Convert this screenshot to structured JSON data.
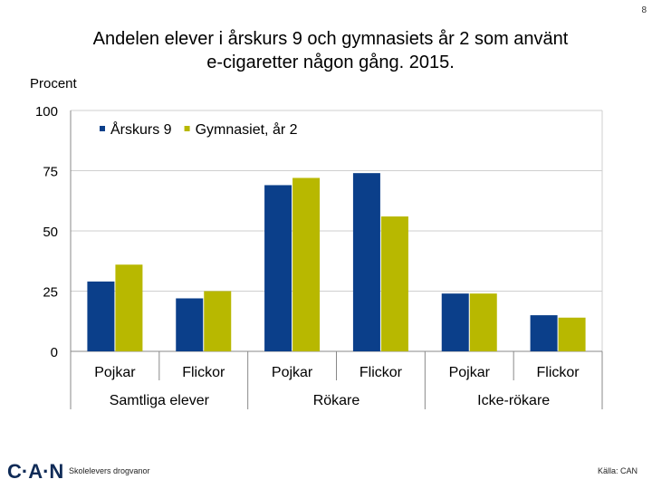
{
  "slide_number": "8",
  "title_line1": "Andelen elever i årskurs 9 och gymnasiets år 2 som använt",
  "title_line2": "e-cigaretter någon gång. 2015.",
  "footer": {
    "logo": "C·A·N",
    "left": "Skolelevers drogvanor",
    "right": "Källa: CAN"
  },
  "colors": {
    "series1": "#0b3f8a",
    "series2": "#b8b800",
    "grid": "#cfcfcf"
  },
  "chart_data": {
    "type": "bar",
    "ylabel": "Procent",
    "ylim": [
      0,
      100
    ],
    "yticks": [
      0,
      25,
      50,
      75,
      100
    ],
    "grid": true,
    "legend_position": "top-left",
    "categories": [
      "Pojkar",
      "Flickor",
      "Pojkar",
      "Flickor",
      "Pojkar",
      "Flickor"
    ],
    "groups": [
      "Samtliga elever",
      "Rökare",
      "Icke-rökare"
    ],
    "series": [
      {
        "name": "Årskurs 9",
        "values": [
          29,
          22,
          69,
          74,
          24,
          15
        ]
      },
      {
        "name": "Gymnasiet, år 2",
        "values": [
          36,
          25,
          72,
          56,
          24,
          14
        ]
      }
    ]
  }
}
